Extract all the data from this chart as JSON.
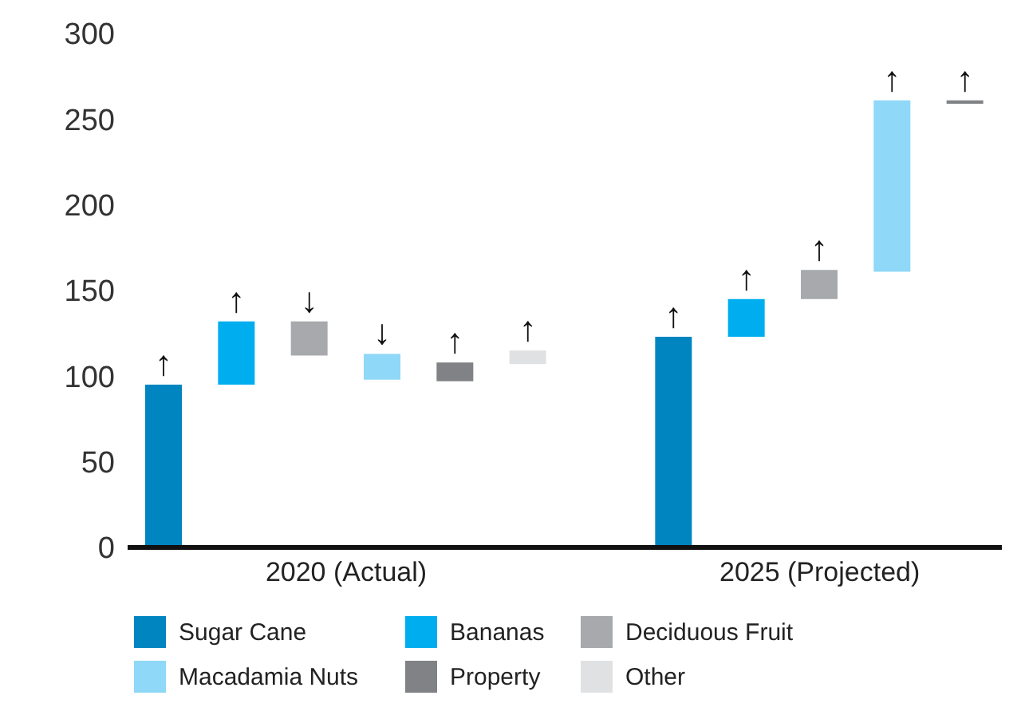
{
  "chart_data": {
    "type": "bar",
    "categories": [
      null,
      null,
      null,
      null,
      null,
      null,
      null,
      null,
      null,
      null,
      null,
      null
    ],
    "ylim": [
      0,
      300
    ],
    "yticks": [
      0,
      50,
      100,
      150,
      200,
      250,
      300
    ],
    "tick_labels": "y",
    "grid": false,
    "legend": "bottom",
    "annotations": [
      "2020 (Actual)",
      "2025 (Projected)"
    ],
    "series": [
      {
        "name": "Sugar Cane",
        "color": "#0085c0",
        "values": [
          95,
          null,
          null,
          null,
          null,
          null,
          null,
          123,
          null,
          null,
          null,
          null
        ],
        "base": [
          0,
          null,
          null,
          null,
          null,
          null,
          null,
          0,
          null,
          null,
          null,
          null
        ],
        "value_labels": [
          "↑",
          null,
          null,
          null,
          null,
          null,
          null,
          "↑",
          null,
          null,
          null,
          null
        ]
      },
      {
        "name": "Bananas",
        "color": "#00aeef",
        "values": [
          null,
          37,
          null,
          null,
          null,
          null,
          null,
          null,
          22,
          null,
          null,
          null
        ],
        "base": [
          null,
          95,
          null,
          null,
          null,
          null,
          null,
          null,
          123,
          null,
          null,
          null
        ],
        "value_labels": [
          null,
          "↑",
          null,
          null,
          null,
          null,
          null,
          null,
          "↑",
          null,
          null,
          null
        ]
      },
      {
        "name": "Deciduous Fruit",
        "color": "#a7a9ac",
        "values": [
          null,
          null,
          20,
          null,
          null,
          null,
          null,
          null,
          null,
          17,
          null,
          null
        ],
        "base": [
          null,
          null,
          112,
          null,
          null,
          null,
          null,
          null,
          null,
          145,
          null,
          null
        ],
        "value_labels": [
          null,
          null,
          "↓",
          null,
          null,
          null,
          null,
          null,
          null,
          "↑",
          null,
          null
        ]
      },
      {
        "name": "Macadamia Nuts",
        "color": "#8fd8f7",
        "values": [
          null,
          null,
          null,
          15,
          null,
          null,
          null,
          null,
          null,
          null,
          100,
          null
        ],
        "base": [
          null,
          null,
          null,
          98,
          null,
          null,
          null,
          null,
          null,
          null,
          161,
          null
        ],
        "value_labels": [
          null,
          null,
          null,
          "↓",
          null,
          null,
          null,
          null,
          null,
          null,
          "↑",
          null
        ]
      },
      {
        "name": "Property",
        "color": "#808285",
        "values": [
          null,
          null,
          null,
          null,
          11,
          null,
          null,
          null,
          null,
          null,
          null,
          2
        ],
        "base": [
          null,
          null,
          null,
          null,
          97,
          null,
          null,
          null,
          null,
          null,
          null,
          259
        ],
        "value_labels": [
          null,
          null,
          null,
          null,
          "↑",
          null,
          null,
          null,
          null,
          null,
          null,
          "↑"
        ]
      },
      {
        "name": "Other",
        "color": "#e0e1e2",
        "values": [
          null,
          null,
          null,
          null,
          null,
          8,
          null,
          null,
          null,
          null,
          null,
          null
        ],
        "base": [
          null,
          null,
          null,
          null,
          null,
          107,
          null,
          null,
          null,
          null,
          null,
          null
        ],
        "value_labels": [
          null,
          null,
          null,
          null,
          null,
          "↑",
          null,
          null,
          null,
          null,
          null,
          null
        ]
      }
    ]
  }
}
